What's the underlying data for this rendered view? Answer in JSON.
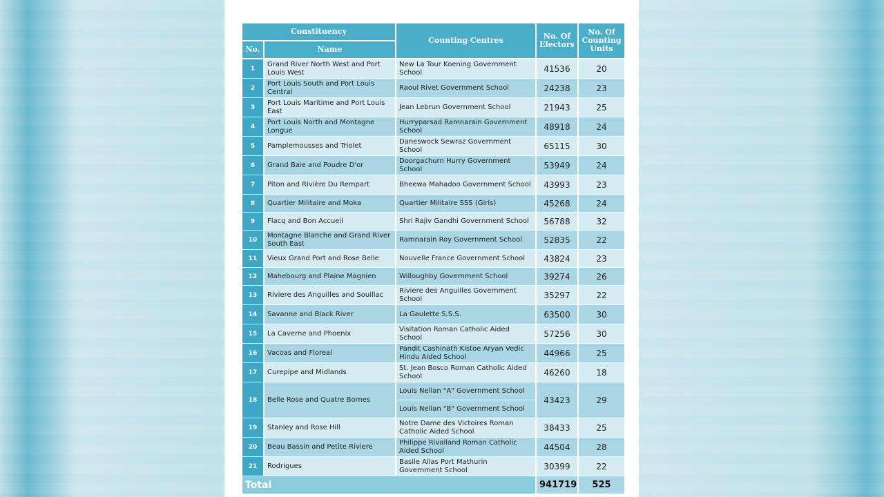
{
  "headers": {
    "constituency": "Constituency",
    "no": "No.",
    "name": "Name",
    "centres": "Counting Centres",
    "electors": "No. Of Electors",
    "units": "No. Of Counting Units"
  },
  "rows": [
    {
      "no": "1",
      "name": "Grand River North West and Port Louis West",
      "centres": [
        "New La Tour Koening Government School"
      ],
      "electors": "41536",
      "units": "20"
    },
    {
      "no": "2",
      "name": "Port Louis South and Port Louis Central",
      "centres": [
        "Raoul Rivet Government School"
      ],
      "electors": "24238",
      "units": "23"
    },
    {
      "no": "3",
      "name": "Port Louis Maritime and Port Louis East",
      "centres": [
        "Jean Lebrun Government School"
      ],
      "electors": "21943",
      "units": "25"
    },
    {
      "no": "4",
      "name": "Port Louis North and Montagne Longue",
      "centres": [
        "Hurryparsad Ramnarain Government School"
      ],
      "electors": "48918",
      "units": "24"
    },
    {
      "no": "5",
      "name": "Pamplemousses and Triolet",
      "centres": [
        "Daneswock Sewraz Government School"
      ],
      "electors": "65115",
      "units": "30"
    },
    {
      "no": "6",
      "name": "Grand Baie and Poudre D'or",
      "centres": [
        "Doorgachurn Hurry Government School"
      ],
      "electors": "53949",
      "units": "24"
    },
    {
      "no": "7",
      "name": "Piton and Rivière Du Rempart",
      "centres": [
        "Bheewa Mahadoo Government School"
      ],
      "electors": "43993",
      "units": "23"
    },
    {
      "no": "8",
      "name": "Quartier Militaire and Moka",
      "centres": [
        "Quartier Militaire SSS (Girls)"
      ],
      "electors": "45268",
      "units": "24"
    },
    {
      "no": "9",
      "name": "Flacq and Bon Accueil",
      "centres": [
        "Shri Rajiv Gandhi Government School"
      ],
      "electors": "56788",
      "units": "32"
    },
    {
      "no": "10",
      "name": "Montagne Blanche and Grand River South East",
      "centres": [
        "Ramnarain Roy Government School"
      ],
      "electors": "52835",
      "units": "22"
    },
    {
      "no": "11",
      "name": "Vieux Grand Port and Rose Belle",
      "centres": [
        "Nouvelle France Government School"
      ],
      "electors": "43824",
      "units": "23"
    },
    {
      "no": "12",
      "name": "Mahebourg and Plaine Magnien",
      "centres": [
        "Willoughby Government School"
      ],
      "electors": "39274",
      "units": "26"
    },
    {
      "no": "13",
      "name": "Riviere des Anguilles and Souillac",
      "centres": [
        "Riviere des Anguilles Government School"
      ],
      "electors": "35297",
      "units": "22"
    },
    {
      "no": "14",
      "name": "Savanne and Black River",
      "centres": [
        "La Gaulette S.S.S."
      ],
      "electors": "63500",
      "units": "30"
    },
    {
      "no": "15",
      "name": "La Caverne and Phoenix",
      "centres": [
        "Visitation Roman Catholic Aided School"
      ],
      "electors": "57256",
      "units": "30"
    },
    {
      "no": "16",
      "name": "Vacoas and Floreal",
      "centres": [
        "Pandit Cashinath Kistoe Aryan Vedic Hindu Aided School"
      ],
      "electors": "44966",
      "units": "25"
    },
    {
      "no": "17",
      "name": "Curepipe and Midlands",
      "centres": [
        "St. Jean Bosco Roman Catholic Aided School"
      ],
      "electors": "46260",
      "units": "18"
    },
    {
      "no": "18",
      "name": "Belle Rose and Quatre Bornes",
      "centres": [
        "Louis Nellan \"A\" Government School",
        "Louis Nellan \"B\" Government School"
      ],
      "electors": "43423",
      "units": "29"
    },
    {
      "no": "19",
      "name": "Stanley and Rose Hill",
      "centres": [
        "Notre Dame des Victoires Roman Catholic Aided School"
      ],
      "electors": "38433",
      "units": "25"
    },
    {
      "no": "20",
      "name": "Beau Bassin and Petite Riviere",
      "centres": [
        "Philippe Rivalland Roman Catholic Aided School"
      ],
      "electors": "44504",
      "units": "28"
    },
    {
      "no": "21",
      "name": "Rodrigues",
      "centres": [
        "Basile Allas Port Mathurin Government School"
      ],
      "electors": "30399",
      "units": "22"
    }
  ],
  "total": {
    "label": "Total",
    "electors": "941719",
    "units": "525"
  },
  "colors": {
    "header": "#4aaec8",
    "no_column": "#3fa7c3",
    "row_light": "#d5ebf1",
    "row_dark": "#a9d6e2"
  }
}
